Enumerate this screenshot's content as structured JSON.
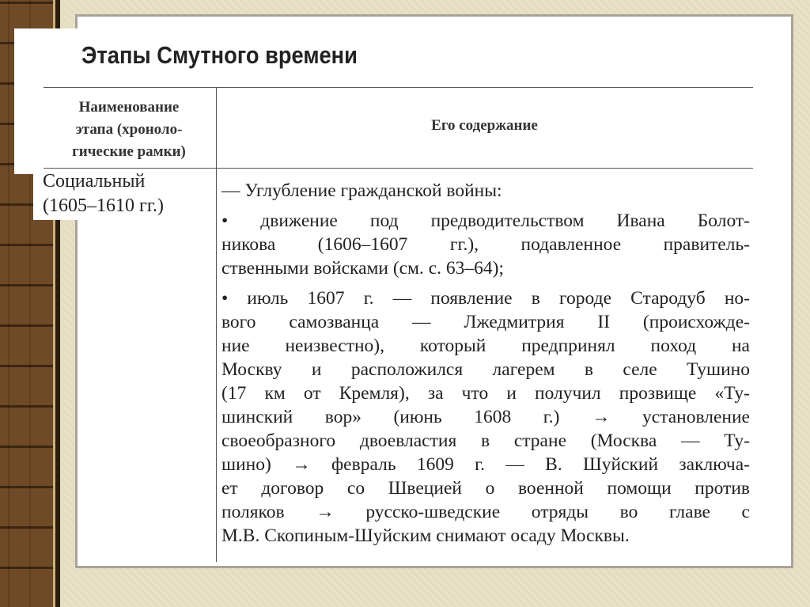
{
  "title": "Этапы Смутного времени",
  "table": {
    "headers": [
      [
        "Наименование",
        "этапа (хроноло-",
        "гические рамки)"
      ],
      [
        "Его содержание"
      ]
    ],
    "rows": [
      {
        "stage": [
          "Социальный",
          "(1605–1610 гг.)"
        ],
        "content": [
          [
            "— Углубление гражданской войны:"
          ],
          [
            "• движение под предводительством Ивана Болот-",
            "никова (1606–1607 гг.), подавленное правитель-",
            "ственными войсками (см. с. 63–64);"
          ],
          [
            "• июль 1607 г. — появление в городе Стародуб но-",
            "вого самозванца — Лжедмитрия II (происхожде-",
            "ние неизвестно), который предпринял поход на",
            "Москву и расположился лагерем в селе Тушино",
            "(17 км от Кремля), за что и получил прозвище «Ту-",
            "шинский вор» (июнь 1608 г.) → установление",
            "своеобразного двоевластия в стране (Москва — Ту-",
            "шино) → февраль 1609 г. — В. Шуйский заключа-",
            "ет договор со Швецией о военной помощи против",
            "поляков → русско-шведские отряды во главе с",
            "М.В. Скопиным-Шуйским снимают осаду Москвы."
          ]
        ]
      }
    ]
  }
}
